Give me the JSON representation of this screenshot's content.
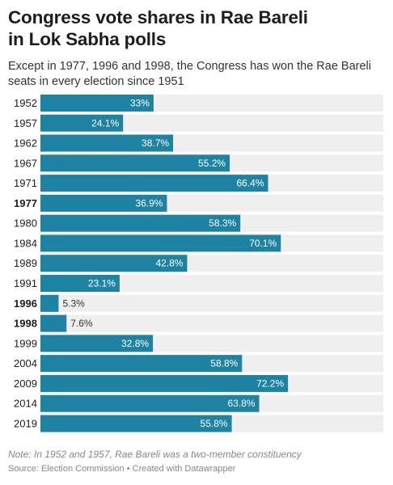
{
  "title_line1": "Congress vote shares in Rae Bareli",
  "title_line2": "in Lok Sabha polls",
  "subtitle": "Except in 1977, 1996 and 1998, the Congress has won the Rae Bareli seats in every election since 1951",
  "note": "Note: In 1952 and 1957, Rae Bareli was a two-member constituency",
  "source": "Source: Election Commission • Created with Datawrapper",
  "colors": {
    "bar": "#1e83a3",
    "track": "#efefef",
    "label_inside": "#ffffff",
    "label_outside": "#333333"
  },
  "chart_data": {
    "type": "bar",
    "orientation": "horizontal",
    "categories": [
      "1952",
      "1957",
      "1962",
      "1967",
      "1971",
      "1977",
      "1980",
      "1984",
      "1989",
      "1991",
      "1996",
      "1998",
      "1999",
      "2004",
      "2009",
      "2014",
      "2019"
    ],
    "values": [
      33,
      24.1,
      38.7,
      55.2,
      66.4,
      36.9,
      58.3,
      70.1,
      42.8,
      23.1,
      5.3,
      7.6,
      32.8,
      58.8,
      72.2,
      63.8,
      55.8
    ],
    "value_labels": [
      "33%",
      "24.1%",
      "38.7%",
      "55.2%",
      "66.4%",
      "36.9%",
      "58.3%",
      "70.1%",
      "42.8%",
      "23.1%",
      "5.3%",
      "7.6%",
      "32.8%",
      "58.8%",
      "72.2%",
      "63.8%",
      "55.8%"
    ],
    "bold_categories": [
      "1977",
      "1996",
      "1998"
    ],
    "xlim": [
      0,
      100
    ],
    "grid": false,
    "legend": "none"
  }
}
